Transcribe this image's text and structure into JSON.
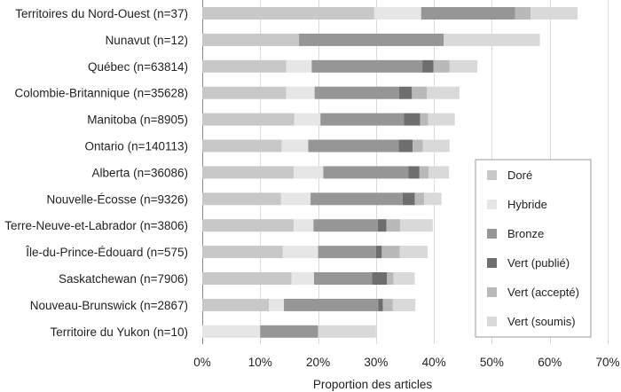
{
  "chart_data": {
    "type": "bar",
    "orientation": "horizontal",
    "stacked": true,
    "xlabel": "Proportion des articles",
    "xlim": [
      0,
      70
    ],
    "xticks": [
      0,
      10,
      20,
      30,
      40,
      50,
      60,
      70
    ],
    "xtick_labels": [
      "0%",
      "10%",
      "20%",
      "30%",
      "40%",
      "50%",
      "60%",
      "70%"
    ],
    "grid": "vertical",
    "legend_position": "right",
    "categories": [
      "Territoires du Nord-Ouest (n=37)",
      "Nunavut (n=12)",
      "Québec (n=63814)",
      "Colombie-Britannique (n=35628)",
      "Manitoba (n=8905)",
      "Ontario (n=140113)",
      "Alberta (n=36086)",
      "Nouvelle-Écosse (n=9326)",
      "Terre-Neuve-et-Labrador (n=3806)",
      "Île-du-Prince-Édouard (n=575)",
      "Saskatchewan (n=7906)",
      "Nouveau-Brunswick (n=2867)",
      "Territoire du Yukon (n=10)"
    ],
    "series": [
      {
        "name": "Doré",
        "color": "#c8c8c8",
        "values": [
          29.7,
          16.7,
          14.5,
          14.5,
          15.9,
          13.7,
          15.8,
          13.6,
          15.8,
          13.9,
          15.4,
          11.5,
          0
        ]
      },
      {
        "name": "Hybride",
        "color": "#e6e6e6",
        "values": [
          8.1,
          0,
          4.4,
          4.9,
          4.5,
          4.6,
          5.1,
          5.1,
          3.4,
          6.1,
          3.9,
          2.6,
          10.0
        ]
      },
      {
        "name": "Bronze",
        "color": "#969696",
        "values": [
          16.2,
          25.0,
          19.1,
          14.6,
          14.4,
          15.6,
          14.7,
          15.9,
          11.1,
          10.0,
          10.0,
          16.3,
          10.0
        ]
      },
      {
        "name": "Vert (publié)",
        "color": "#6e6e6e",
        "values": [
          0,
          0,
          1.9,
          2.2,
          2.8,
          2.4,
          1.9,
          2.1,
          1.5,
          1.0,
          2.6,
          0.8,
          0
        ]
      },
      {
        "name": "Vert (accepté)",
        "color": "#b9b9b9",
        "values": [
          2.7,
          0,
          2.8,
          2.6,
          1.4,
          1.8,
          1.6,
          1.6,
          2.4,
          3.1,
          1.1,
          1.7,
          0
        ]
      },
      {
        "name": "Vert (soumis)",
        "color": "#d9d9d9",
        "values": [
          8.1,
          16.6,
          4.8,
          5.6,
          4.6,
          4.6,
          3.5,
          3.0,
          5.6,
          4.8,
          3.7,
          3.9,
          10.0
        ]
      }
    ]
  }
}
